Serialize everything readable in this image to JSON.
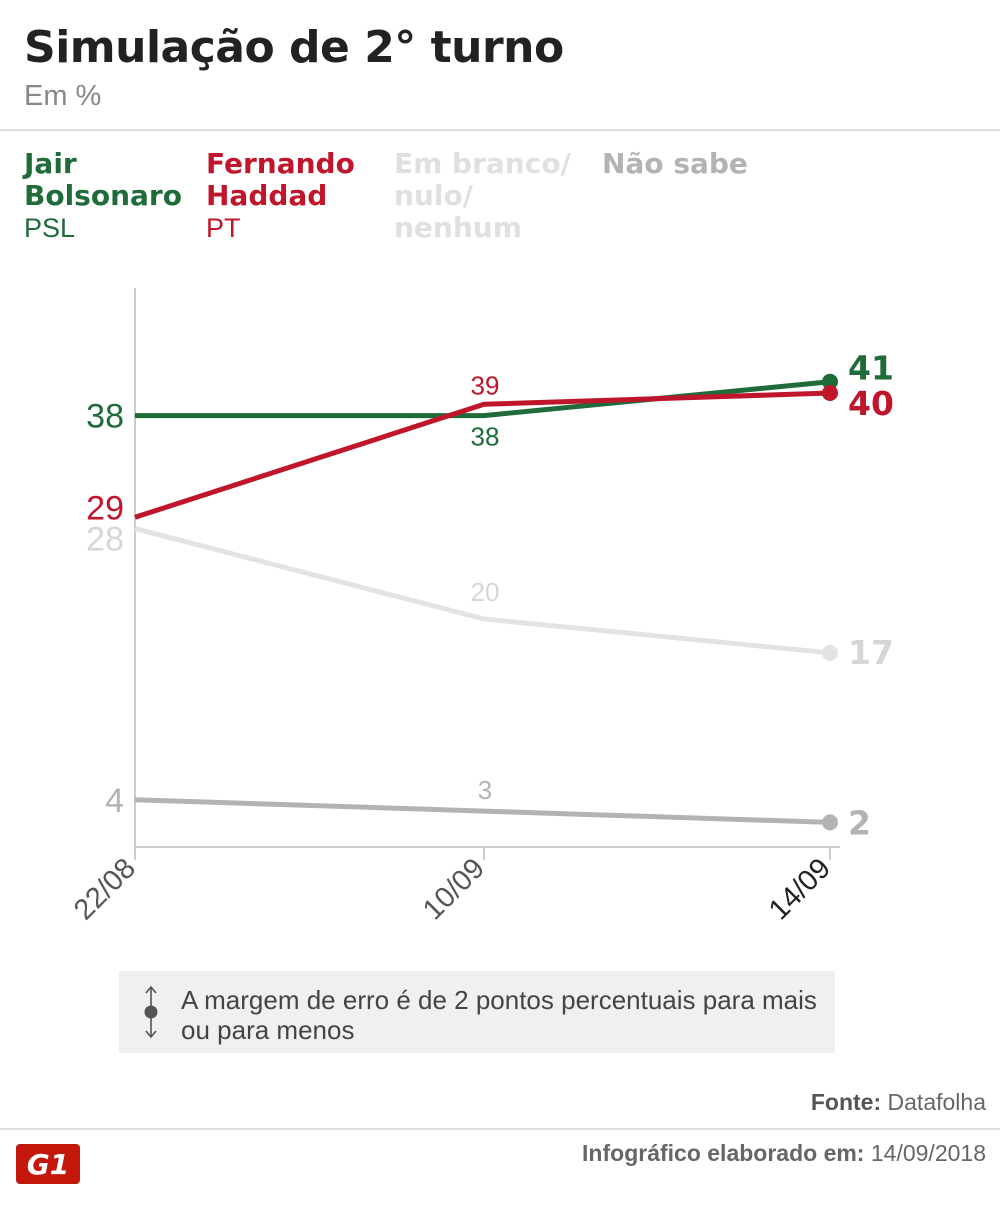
{
  "title": "Simulação de 2° turno",
  "subtitle": "Em %",
  "legend": [
    {
      "name": "Jair Bolsonaro",
      "party": "PSL",
      "color": "#1f6b3a"
    },
    {
      "name": "Fernando Haddad",
      "party": "PT",
      "color": "#c0162c"
    },
    {
      "name": "Em branco/ nulo/ nenhum",
      "party": "",
      "color": "#e3e3e3"
    },
    {
      "name": "Não sabe",
      "party": "",
      "color": "#b3b3b3"
    }
  ],
  "chart_data": {
    "type": "line",
    "x": [
      "22/08",
      "10/09",
      "14/09"
    ],
    "series": [
      {
        "name": "Jair Bolsonaro",
        "values": [
          38,
          38,
          41
        ],
        "color": "#1f6b3a"
      },
      {
        "name": "Fernando Haddad",
        "values": [
          29,
          39,
          40
        ],
        "color": "#c0162c"
      },
      {
        "name": "Em branco/ nulo/ nenhum",
        "values": [
          28,
          20,
          17
        ],
        "color": "#e3e3e3"
      },
      {
        "name": "Não sabe",
        "values": [
          4,
          3,
          2
        ],
        "color": "#b3b3b3"
      }
    ],
    "ylim": [
      0,
      50
    ],
    "grid": false
  },
  "note": {
    "text": "A margem de erro é de 2 pontos percentuais para mais ou para menos"
  },
  "source": {
    "label": "Fonte:",
    "value": "Datafolha"
  },
  "footer": {
    "label": "Infográfico elaborado em:",
    "date": "14/09/2018"
  },
  "logo_text": "G1",
  "logo_color": "#c4170c"
}
